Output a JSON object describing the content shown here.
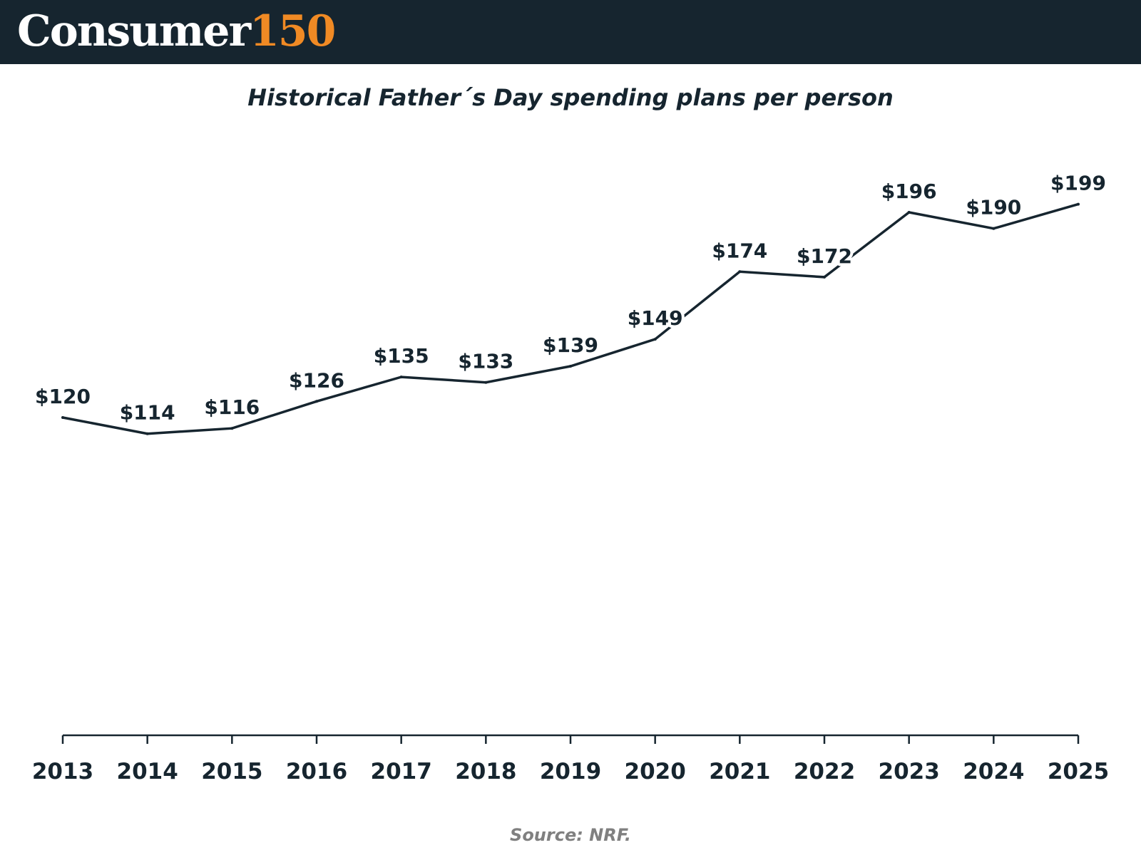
{
  "header": {
    "brand_word": "Consumer",
    "brand_number": "150",
    "bar_color": "#16252f",
    "accent_color": "#f08a24"
  },
  "chart_data": {
    "type": "line",
    "title": "Historical Father´s Day spending plans per person",
    "categories": [
      "2013",
      "2014",
      "2015",
      "2016",
      "2017",
      "2018",
      "2019",
      "2020",
      "2021",
      "2022",
      "2023",
      "2024",
      "2025"
    ],
    "values": [
      120,
      114,
      116,
      126,
      135,
      133,
      139,
      149,
      174,
      172,
      196,
      190,
      199
    ],
    "data_labels": [
      "$120",
      "$114",
      "$116",
      "$126",
      "$135",
      "$133",
      "$139",
      "$149",
      "$174",
      "$172",
      "$196",
      "$190",
      "$199"
    ],
    "xlabel": "",
    "ylabel": "",
    "grid": false,
    "line_color": "#16252f"
  },
  "footer": {
    "source": "Source: NRF."
  }
}
